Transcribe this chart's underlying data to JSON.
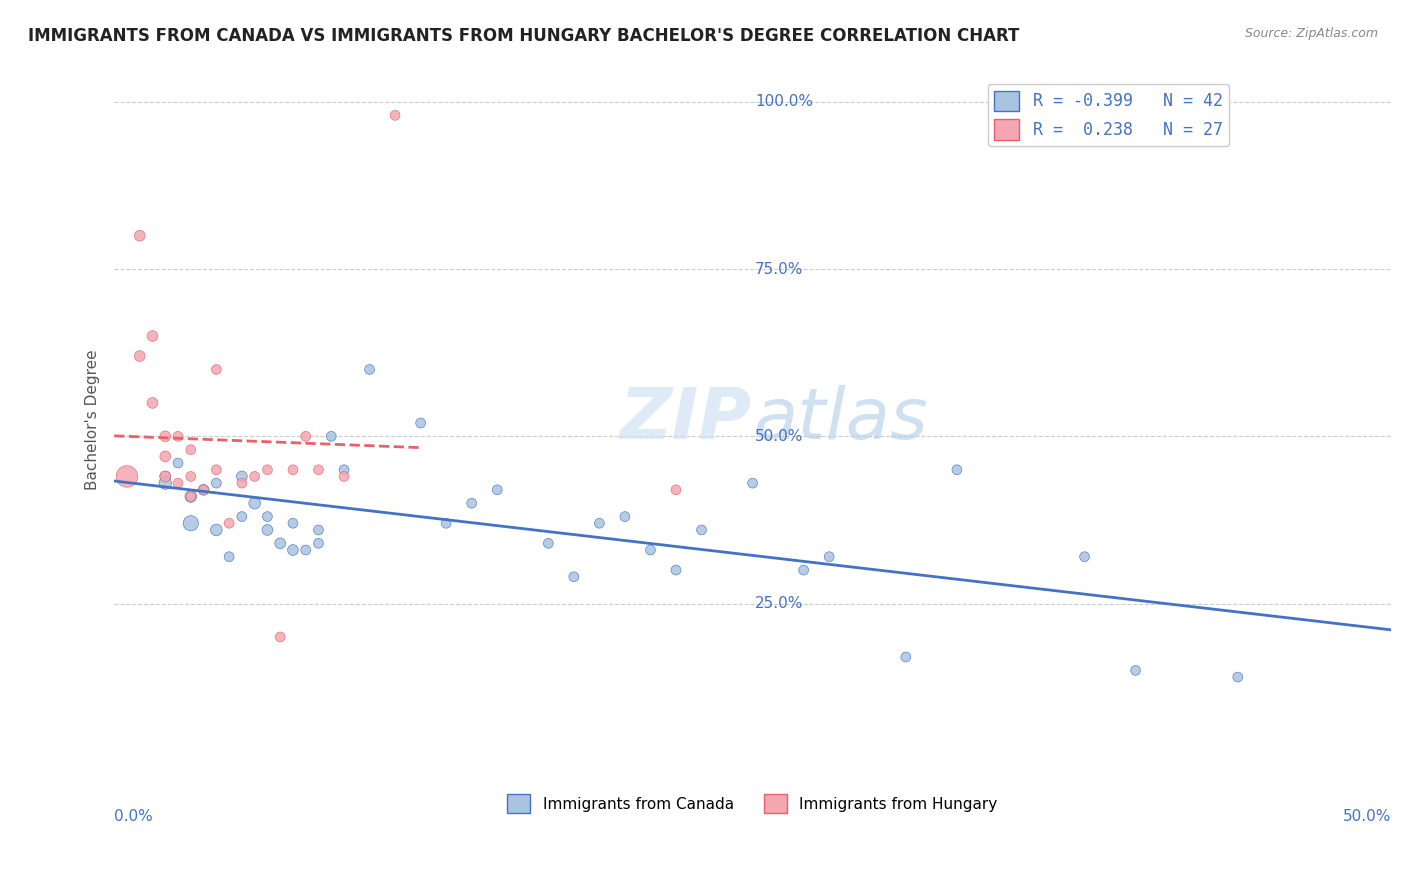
{
  "title": "IMMIGRANTS FROM CANADA VS IMMIGRANTS FROM HUNGARY BACHELOR'S DEGREE CORRELATION CHART",
  "source": "Source: ZipAtlas.com",
  "xlabel": "",
  "ylabel": "Bachelor's Degree",
  "xlim": [
    0.0,
    0.5
  ],
  "ylim": [
    0.0,
    1.05
  ],
  "ytick_values": [
    0.25,
    0.5,
    0.75,
    1.0
  ],
  "ytick_labels": [
    "25.0%",
    "50.0%",
    "75.0%",
    "100.0%"
  ],
  "legend_r1": "R = -0.399   N = 42",
  "legend_r2": "R =  0.238   N = 27",
  "color_canada": "#a8c4e0",
  "color_hungary": "#f4a7b0",
  "trendline_canada": "#4472c4",
  "trendline_hungary": "#e8606a",
  "watermark_zip": "ZIP",
  "watermark_atlas": "atlas",
  "canada_x": [
    0.02,
    0.02,
    0.025,
    0.03,
    0.03,
    0.035,
    0.04,
    0.04,
    0.045,
    0.05,
    0.05,
    0.055,
    0.06,
    0.06,
    0.065,
    0.07,
    0.07,
    0.075,
    0.08,
    0.08,
    0.085,
    0.09,
    0.1,
    0.12,
    0.13,
    0.14,
    0.15,
    0.17,
    0.18,
    0.19,
    0.2,
    0.21,
    0.22,
    0.23,
    0.25,
    0.27,
    0.28,
    0.31,
    0.33,
    0.38,
    0.4,
    0.44
  ],
  "canada_y": [
    0.44,
    0.43,
    0.46,
    0.37,
    0.41,
    0.42,
    0.43,
    0.36,
    0.32,
    0.44,
    0.38,
    0.4,
    0.36,
    0.38,
    0.34,
    0.37,
    0.33,
    0.33,
    0.34,
    0.36,
    0.5,
    0.45,
    0.6,
    0.52,
    0.37,
    0.4,
    0.42,
    0.34,
    0.29,
    0.37,
    0.38,
    0.33,
    0.3,
    0.36,
    0.43,
    0.3,
    0.32,
    0.17,
    0.45,
    0.32,
    0.15,
    0.14
  ],
  "canada_size": [
    30,
    40,
    25,
    60,
    35,
    30,
    25,
    35,
    25,
    30,
    25,
    35,
    30,
    25,
    30,
    25,
    30,
    25,
    25,
    25,
    25,
    25,
    25,
    25,
    25,
    25,
    25,
    25,
    25,
    25,
    25,
    25,
    25,
    25,
    25,
    25,
    25,
    25,
    25,
    25,
    25,
    25
  ],
  "hungary_x": [
    0.005,
    0.01,
    0.01,
    0.015,
    0.015,
    0.02,
    0.02,
    0.02,
    0.025,
    0.025,
    0.03,
    0.03,
    0.03,
    0.035,
    0.04,
    0.04,
    0.045,
    0.05,
    0.055,
    0.06,
    0.065,
    0.07,
    0.075,
    0.08,
    0.09,
    0.11,
    0.22
  ],
  "hungary_y": [
    0.44,
    0.8,
    0.62,
    0.65,
    0.55,
    0.5,
    0.47,
    0.44,
    0.5,
    0.43,
    0.44,
    0.41,
    0.48,
    0.42,
    0.45,
    0.6,
    0.37,
    0.43,
    0.44,
    0.45,
    0.2,
    0.45,
    0.5,
    0.45,
    0.44,
    0.98,
    0.42
  ],
  "hungary_size": [
    120,
    30,
    30,
    30,
    30,
    30,
    30,
    30,
    25,
    25,
    25,
    25,
    25,
    25,
    25,
    25,
    25,
    25,
    25,
    25,
    25,
    25,
    25,
    25,
    25,
    25,
    25
  ]
}
